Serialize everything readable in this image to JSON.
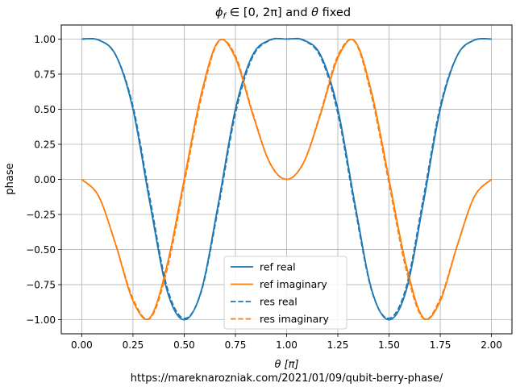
{
  "chart_data": {
    "type": "line",
    "title": "ϕ_f ∈ [0, 2π] and θ fixed",
    "title_parts": {
      "phi": "ϕ",
      "phi_sub": "f",
      "rest": " ∈ [0, 2π] and ",
      "theta": "θ",
      "tail": " fixed"
    },
    "xlabel": "θ [π]",
    "ylabel": "phase",
    "footer": "https://mareknarozniak.com/2021/01/09/qubit-berry-phase/",
    "xlim": [
      -0.1,
      2.1
    ],
    "ylim": [
      -1.1,
      1.1
    ],
    "xticks": [
      "0.00",
      "0.25",
      "0.50",
      "0.75",
      "1.00",
      "1.25",
      "1.50",
      "1.75",
      "2.00"
    ],
    "xtick_values": [
      0,
      0.25,
      0.5,
      0.75,
      1.0,
      1.25,
      1.5,
      1.75,
      2.0
    ],
    "yticks": [
      "−1.00",
      "−0.75",
      "−0.50",
      "−0.25",
      "0.00",
      "0.25",
      "0.50",
      "0.75",
      "1.00"
    ],
    "ytick_values": [
      -1.0,
      -0.75,
      -0.5,
      -0.25,
      0,
      0.25,
      0.5,
      0.75,
      1.0
    ],
    "grid": true,
    "legend_position": "lower center",
    "x": [
      0.0,
      0.0833,
      0.1667,
      0.25,
      0.3333,
      0.4167,
      0.5,
      0.5833,
      0.6667,
      0.75,
      0.8333,
      0.9167,
      1.0,
      1.0833,
      1.1667,
      1.25,
      1.3333,
      1.4167,
      1.5,
      1.5833,
      1.6667,
      1.75,
      1.8333,
      1.9167,
      2.0
    ],
    "series": [
      {
        "name": "ref real",
        "style": "solid",
        "color": "#1f77b4",
        "values": [
          1.0,
          0.9925,
          0.883,
          0.5,
          -0.1736,
          -0.7934,
          -1.0,
          -0.7934,
          -0.1736,
          0.5,
          0.883,
          0.9925,
          1.0,
          0.9925,
          0.883,
          0.5,
          -0.1736,
          -0.7934,
          -1.0,
          -0.7934,
          -0.1736,
          0.5,
          0.883,
          0.9925,
          1.0
        ]
      },
      {
        "name": "ref imaginary",
        "style": "solid",
        "color": "#ff7f0e",
        "values": [
          0.0,
          -0.1219,
          -0.4695,
          -0.866,
          -0.9848,
          -0.6088,
          0.0,
          0.6088,
          0.9848,
          0.866,
          0.4695,
          0.1219,
          0.0,
          0.1219,
          0.4695,
          0.866,
          0.9848,
          0.6088,
          0.0,
          -0.6088,
          -0.9848,
          -0.866,
          -0.4695,
          -0.1219,
          0.0
        ]
      },
      {
        "name": "res real",
        "style": "dashed",
        "color": "#1f77b4",
        "values": [
          1.0,
          0.9925,
          0.883,
          0.52,
          -0.14,
          -0.77,
          -0.99,
          -0.8,
          -0.2,
          0.47,
          0.87,
          0.99,
          1.0,
          0.99,
          0.87,
          0.47,
          -0.2,
          -0.8,
          -0.99,
          -0.77,
          -0.14,
          0.52,
          0.883,
          0.9925,
          1.0
        ]
      },
      {
        "name": "res imaginary",
        "style": "dashed",
        "color": "#ff7f0e",
        "values": [
          0.0,
          -0.1219,
          -0.4695,
          -0.85,
          -0.99,
          -0.64,
          -0.03,
          0.58,
          0.98,
          0.88,
          0.48,
          0.12,
          0.0,
          0.12,
          0.48,
          0.88,
          0.98,
          0.58,
          -0.03,
          -0.64,
          -0.99,
          -0.85,
          -0.4695,
          -0.1219,
          0.0
        ]
      }
    ]
  }
}
